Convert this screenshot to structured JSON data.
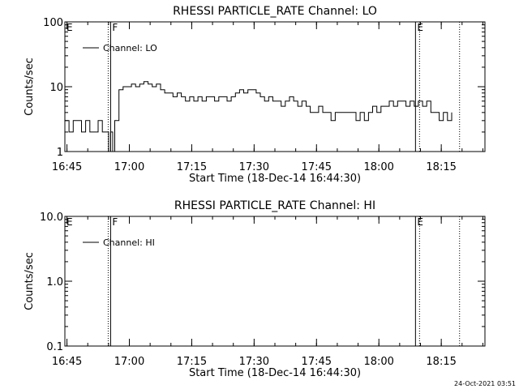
{
  "footer_timestamp": "24-Oct-2021 03:51",
  "chart_data": [
    {
      "type": "line",
      "title": "RHESSI PARTICLE_RATE Channel: LO",
      "xlabel": "Start Time (18-Dec-14 16:44:30)",
      "ylabel": "Counts/sec",
      "yscale": "log",
      "ylim": [
        1,
        100
      ],
      "xlim_minutes": [
        0,
        101
      ],
      "x_ticks": [
        {
          "label": "16:45",
          "minutes": 0.5
        },
        {
          "label": "17:00",
          "minutes": 15.5
        },
        {
          "label": "17:15",
          "minutes": 30.5
        },
        {
          "label": "17:30",
          "minutes": 45.5
        },
        {
          "label": "17:45",
          "minutes": 60.5
        },
        {
          "label": "18:00",
          "minutes": 75.5
        },
        {
          "label": "18:15",
          "minutes": 90.5
        }
      ],
      "y_ticks": [
        {
          "label": "100",
          "value": 100
        },
        {
          "label": "10",
          "value": 10
        },
        {
          "label": "1",
          "value": 1
        }
      ],
      "legend": {
        "label": "Channel: LO",
        "placement": "top-left"
      },
      "markers": [
        {
          "label": "E",
          "minutes": 0,
          "style": "none"
        },
        {
          "label": "F",
          "minutes": 11,
          "style": "dotted-solid"
        },
        {
          "label": "E",
          "minutes": 84.3,
          "style": "solid-dotted"
        },
        {
          "label": "",
          "minutes": 94.9,
          "style": "dotted"
        }
      ],
      "series": [
        {
          "x": [
            0,
            1,
            2,
            3,
            4,
            5,
            6,
            7,
            8,
            9,
            10,
            10.5,
            11,
            11.5,
            12,
            13,
            14,
            15,
            16,
            17,
            18,
            19,
            20,
            21,
            22,
            23,
            24,
            25,
            26,
            27,
            28,
            29,
            30,
            31,
            32,
            33,
            34,
            35,
            36,
            37,
            38,
            39,
            40,
            41,
            42,
            43,
            44,
            45,
            46,
            47,
            48,
            49,
            50,
            51,
            52,
            53,
            54,
            55,
            56,
            57,
            58,
            59,
            60,
            61,
            62,
            63,
            64,
            65,
            66,
            67,
            68,
            69,
            70,
            71,
            72,
            73,
            74,
            75,
            76,
            77,
            78,
            79,
            80,
            81,
            82,
            83,
            84,
            85,
            86,
            87,
            88,
            89,
            90,
            91,
            92,
            93
          ],
          "y": [
            3,
            2,
            3,
            3,
            2,
            3,
            2,
            2,
            3,
            2,
            2,
            1,
            2,
            1,
            3,
            9,
            10,
            10,
            11,
            10,
            11,
            12,
            11,
            10,
            11,
            9,
            8,
            8,
            7,
            8,
            7,
            6,
            7,
            6,
            7,
            6,
            7,
            7,
            6,
            7,
            7,
            6,
            7,
            8,
            9,
            8,
            9,
            9,
            8,
            7,
            6,
            7,
            6,
            6,
            5,
            6,
            7,
            6,
            5,
            6,
            5,
            4,
            4,
            5,
            4,
            4,
            3,
            4,
            4,
            4,
            4,
            4,
            3,
            4,
            3,
            4,
            5,
            4,
            5,
            5,
            6,
            5,
            6,
            6,
            5,
            6,
            5,
            6,
            5,
            6,
            4,
            4,
            3,
            4,
            3,
            4
          ],
          "color": "#000000"
        }
      ]
    },
    {
      "type": "line",
      "title": "RHESSI PARTICLE_RATE Channel: HI",
      "xlabel": "Start Time (18-Dec-14 16:44:30)",
      "ylabel": "Counts/sec",
      "yscale": "log",
      "ylim": [
        0.1,
        10
      ],
      "xlim_minutes": [
        0,
        101
      ],
      "x_ticks": [
        {
          "label": "16:45",
          "minutes": 0.5
        },
        {
          "label": "17:00",
          "minutes": 15.5
        },
        {
          "label": "17:15",
          "minutes": 30.5
        },
        {
          "label": "17:30",
          "minutes": 45.5
        },
        {
          "label": "17:45",
          "minutes": 60.5
        },
        {
          "label": "18:00",
          "minutes": 75.5
        },
        {
          "label": "18:15",
          "minutes": 90.5
        }
      ],
      "y_ticks": [
        {
          "label": "10.0",
          "value": 10
        },
        {
          "label": "1.0",
          "value": 1
        },
        {
          "label": "0.1",
          "value": 0.1
        }
      ],
      "legend": {
        "label": "Channel: HI",
        "placement": "top-left"
      },
      "markers": [
        {
          "label": "E",
          "minutes": 0,
          "style": "none"
        },
        {
          "label": "F",
          "minutes": 11,
          "style": "dotted-solid"
        },
        {
          "label": "E",
          "minutes": 84.3,
          "style": "solid-dotted"
        },
        {
          "label": "",
          "minutes": 94.9,
          "style": "dotted"
        }
      ],
      "series": [
        {
          "x": [],
          "y": [],
          "color": "#000000"
        }
      ]
    }
  ]
}
